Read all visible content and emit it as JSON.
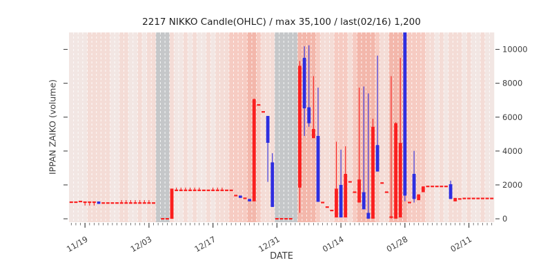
{
  "title": "2217 NIKKO Candle(OHLC) / max 35,100 / last(02/16) 1,200",
  "axes": {
    "ylabel": "IPPAN ZAIKO (volume)",
    "xlabel": "DATE",
    "x_major_ticks": [
      "11/19",
      "12/03",
      "12/17",
      "12/31",
      "01/14",
      "01/28",
      "02/11"
    ],
    "x_major_indices": [
      3,
      17,
      31,
      45,
      59,
      73,
      87
    ],
    "y_ticks": [
      0,
      2000,
      4000,
      6000,
      8000,
      10000
    ],
    "ylim": [
      -200,
      11000
    ]
  },
  "colors": {
    "up": "#fa1f1f",
    "down": "#2e2ee0",
    "bg0": "#f2e6e3",
    "bg1": "#f4dcd6",
    "bg2": "#f6cbc2",
    "bg3": "#f3b7ab",
    "bgg": "#c5c7c9",
    "grid": "#ffffff",
    "tick": "#3d3d3d"
  },
  "chart_data": {
    "type": "candlestick-ohlc",
    "title": "2217 NIKKO Candle(OHLC) / max 35,100 / last(02/16) 1,200",
    "xlabel": "DATE",
    "ylabel": "IPPAN ZAIKO (volume)",
    "ylim": [
      -200,
      11000
    ],
    "note_max": "35,100",
    "note_last_date": "02/16",
    "note_last_value": "1,200",
    "columns": [
      "date",
      "open",
      "high",
      "low",
      "close",
      "dir",
      "bg"
    ],
    "candles": [
      [
        "11/16",
        980,
        980,
        980,
        980,
        "r",
        0
      ],
      [
        "11/17",
        980,
        980,
        980,
        980,
        "r",
        0
      ],
      [
        "11/18",
        1020,
        1020,
        1020,
        1020,
        "r",
        0
      ],
      [
        "11/19",
        980,
        980,
        780,
        980,
        "r",
        0
      ],
      [
        "11/20",
        980,
        980,
        780,
        980,
        "r",
        1
      ],
      [
        "11/21",
        980,
        980,
        780,
        980,
        "r",
        1
      ],
      [
        "11/22",
        1020,
        1020,
        880,
        880,
        "b",
        1
      ],
      [
        "11/23",
        930,
        930,
        930,
        930,
        "r",
        1
      ],
      [
        "11/24",
        930,
        930,
        930,
        930,
        "r",
        1
      ],
      [
        "11/25",
        930,
        930,
        930,
        930,
        "r",
        0
      ],
      [
        "11/26",
        930,
        930,
        930,
        930,
        "r",
        0
      ],
      [
        "11/27",
        930,
        1100,
        930,
        930,
        "r",
        1
      ],
      [
        "11/28",
        930,
        1100,
        930,
        930,
        "r",
        1
      ],
      [
        "11/29",
        930,
        1100,
        930,
        930,
        "r",
        0
      ],
      [
        "11/30",
        930,
        1100,
        930,
        930,
        "r",
        0
      ],
      [
        "12/01",
        930,
        1100,
        930,
        930,
        "r",
        1
      ],
      [
        "12/02",
        930,
        1100,
        930,
        930,
        "r",
        0
      ],
      [
        "12/03",
        930,
        1100,
        930,
        930,
        "r",
        1
      ],
      [
        "12/04",
        930,
        930,
        930,
        930,
        "r",
        1
      ],
      [
        "12/05",
        null,
        null,
        null,
        null,
        null,
        "g"
      ],
      [
        "12/06",
        0,
        0,
        0,
        0,
        "r",
        "g"
      ],
      [
        "12/07",
        0,
        0,
        0,
        0,
        "r",
        "g"
      ],
      [
        "12/08",
        0,
        1780,
        0,
        1780,
        "r",
        1
      ],
      [
        "12/09",
        1680,
        1840,
        1680,
        1680,
        "r",
        0
      ],
      [
        "12/10",
        1680,
        1840,
        1680,
        1680,
        "r",
        0
      ],
      [
        "12/11",
        1680,
        1840,
        1680,
        1680,
        "r",
        1
      ],
      [
        "12/12",
        1680,
        1840,
        1680,
        1680,
        "r",
        0
      ],
      [
        "12/13",
        1680,
        1840,
        1680,
        1680,
        "r",
        1
      ],
      [
        "12/14",
        1680,
        1840,
        1680,
        1680,
        "r",
        0
      ],
      [
        "12/15",
        1680,
        1680,
        1680,
        1680,
        "r",
        0
      ],
      [
        "12/16",
        1680,
        1680,
        1680,
        1680,
        "r",
        1
      ],
      [
        "12/17",
        1680,
        1840,
        1680,
        1680,
        "r",
        0
      ],
      [
        "12/18",
        1680,
        1840,
        1680,
        1680,
        "r",
        1
      ],
      [
        "12/19",
        1680,
        1840,
        1680,
        1680,
        "r",
        1
      ],
      [
        "12/20",
        1680,
        1680,
        1680,
        1680,
        "r",
        1
      ],
      [
        "12/21",
        1680,
        1680,
        1680,
        1680,
        "r",
        2
      ],
      [
        "12/22",
        1370,
        1370,
        1370,
        1370,
        "r",
        2
      ],
      [
        "12/23",
        1370,
        1370,
        1235,
        1235,
        "b",
        2
      ],
      [
        "12/24",
        1210,
        1210,
        1210,
        1210,
        "r",
        2
      ],
      [
        "12/25",
        1170,
        1170,
        1030,
        1030,
        "b",
        3
      ],
      [
        "12/26",
        1030,
        7100,
        1030,
        7060,
        "r",
        3
      ],
      [
        "12/27",
        6720,
        6720,
        6720,
        6720,
        "r",
        2
      ],
      [
        "12/28",
        6310,
        6310,
        6310,
        6310,
        "r",
        1
      ],
      [
        "12/29",
        6070,
        6070,
        2180,
        4485,
        "b",
        1
      ],
      [
        "12/30",
        3330,
        3870,
        700,
        700,
        "b",
        1
      ],
      [
        "12/31",
        0,
        0,
        0,
        0,
        "r",
        "g"
      ],
      [
        "01/01",
        0,
        0,
        0,
        0,
        "r",
        "g"
      ],
      [
        "01/02",
        0,
        0,
        0,
        0,
        "r",
        "g"
      ],
      [
        "01/03",
        0,
        0,
        0,
        0,
        "r",
        "g"
      ],
      [
        "01/04",
        null,
        null,
        null,
        null,
        null,
        "g"
      ],
      [
        "01/05",
        1840,
        9320,
        350,
        9030,
        "r",
        3
      ],
      [
        "01/06",
        9500,
        10180,
        4890,
        6520,
        "b",
        3
      ],
      [
        "01/07",
        6580,
        10240,
        5430,
        5640,
        "b",
        3
      ],
      [
        "01/08",
        4760,
        8420,
        4760,
        5300,
        "r",
        3
      ],
      [
        "01/09",
        4890,
        7740,
        1000,
        1000,
        "b",
        2
      ],
      [
        "01/10",
        960,
        960,
        960,
        960,
        "r",
        1
      ],
      [
        "01/11",
        690,
        690,
        690,
        690,
        "r",
        1
      ],
      [
        "01/12",
        490,
        490,
        490,
        490,
        "r",
        1
      ],
      [
        "01/13",
        80,
        4550,
        80,
        1780,
        "r",
        2
      ],
      [
        "01/14",
        2000,
        4080,
        80,
        80,
        "b",
        2
      ],
      [
        "01/15",
        80,
        4280,
        80,
        2650,
        "r",
        2
      ],
      [
        "01/16",
        2180,
        2180,
        2180,
        2180,
        "r",
        1
      ],
      [
        "01/17",
        1570,
        1570,
        1570,
        1570,
        "r",
        2
      ],
      [
        "01/18",
        960,
        7740,
        960,
        2320,
        "r",
        3
      ],
      [
        "01/19",
        1570,
        7810,
        560,
        560,
        "b",
        3
      ],
      [
        "01/20",
        350,
        7400,
        0,
        10,
        "b",
        3
      ],
      [
        "01/21",
        10,
        5910,
        10,
        5430,
        "r",
        3
      ],
      [
        "01/22",
        4350,
        9630,
        2790,
        2790,
        "b",
        2
      ],
      [
        "01/23",
        2110,
        2110,
        2110,
        2110,
        "r",
        1
      ],
      [
        "01/24",
        1570,
        1570,
        1570,
        1570,
        "r",
        1
      ],
      [
        "01/25",
        100,
        8420,
        0,
        100,
        "r",
        3
      ],
      [
        "01/26",
        10,
        5700,
        10,
        5640,
        "r",
        3
      ],
      [
        "01/27",
        80,
        9500,
        80,
        4480,
        "r",
        3
      ],
      [
        "01/28",
        35100,
        35100,
        1030,
        1370,
        "b",
        3
      ],
      [
        "01/29",
        960,
        960,
        960,
        960,
        "r",
        2
      ],
      [
        "01/30",
        2650,
        4010,
        960,
        1170,
        "b",
        2
      ],
      [
        "01/31",
        1100,
        1440,
        1100,
        1440,
        "r",
        2
      ],
      [
        "02/01",
        1570,
        1910,
        1570,
        1910,
        "r",
        2
      ],
      [
        "02/02",
        1910,
        1910,
        1910,
        1910,
        "r",
        1
      ],
      [
        "02/03",
        1910,
        1910,
        1910,
        1910,
        "r",
        1
      ],
      [
        "02/04",
        1910,
        1910,
        1910,
        1910,
        "r",
        0
      ],
      [
        "02/05",
        1910,
        1910,
        1910,
        1910,
        "r",
        1
      ],
      [
        "02/06",
        1910,
        1910,
        1910,
        1910,
        "r",
        0
      ],
      [
        "02/07",
        2040,
        2250,
        1170,
        1170,
        "b",
        1
      ],
      [
        "02/08",
        1030,
        1230,
        1030,
        1230,
        "r",
        1
      ],
      [
        "02/09",
        1170,
        1170,
        1170,
        1170,
        "r",
        1
      ],
      [
        "02/10",
        1200,
        1200,
        1200,
        1200,
        "r",
        0
      ],
      [
        "02/11",
        1200,
        1200,
        1200,
        1200,
        "r",
        1
      ],
      [
        "02/12",
        1200,
        1200,
        1200,
        1200,
        "r",
        0
      ],
      [
        "02/13",
        1200,
        1200,
        1200,
        1200,
        "r",
        0
      ],
      [
        "02/14",
        1200,
        1200,
        1200,
        1200,
        "r",
        1
      ],
      [
        "02/15",
        1200,
        1200,
        1200,
        1200,
        "r",
        0
      ],
      [
        "02/16",
        1200,
        1200,
        1200,
        1200,
        "r",
        0
      ]
    ]
  }
}
